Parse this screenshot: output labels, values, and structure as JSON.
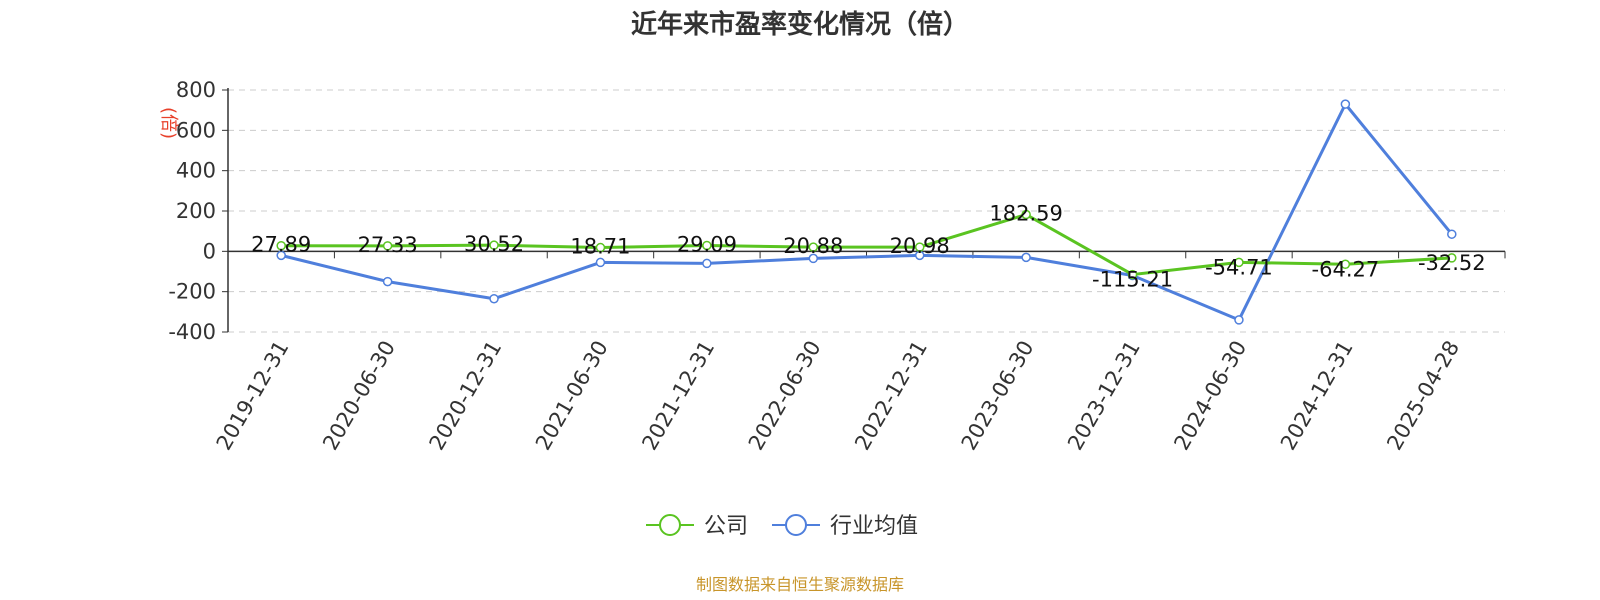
{
  "chart_data": {
    "type": "line",
    "title": "近年来市盈率变化情况（倍）",
    "ylabel": "(倍)",
    "xlabel": "",
    "categories": [
      "2019-12-31",
      "2020-06-30",
      "2020-12-31",
      "2021-06-30",
      "2021-12-31",
      "2022-06-30",
      "2022-12-31",
      "2023-06-30",
      "2023-12-31",
      "2024-06-30",
      "2024-12-31",
      "2025-04-28"
    ],
    "yticks": [
      "800",
      "600",
      "400",
      "200",
      "0",
      "-200",
      "-400"
    ],
    "ylim": [
      -400,
      800
    ],
    "grid": true,
    "legend_position": "bottom-center",
    "series": [
      {
        "name": "公司",
        "color": "#5ac421",
        "values": [
          27.89,
          27.33,
          30.52,
          18.71,
          29.09,
          20.88,
          20.98,
          182.59,
          -115.21,
          -54.71,
          -64.27,
          -32.52
        ],
        "labels": [
          "27.89",
          "27.33",
          "30.52",
          "18.71",
          "29.09",
          "20.88",
          "20.98",
          "182.59",
          "-115.21",
          "-54.71",
          "-64.27",
          "-32.52"
        ]
      },
      {
        "name": "行业均值",
        "color": "#4f7fdc",
        "values": [
          -20,
          -150,
          -235,
          -55,
          -60,
          -35,
          -20,
          -30,
          -120,
          -340,
          730,
          85
        ]
      }
    ]
  },
  "source": "制图数据来自恒生聚源数据库"
}
